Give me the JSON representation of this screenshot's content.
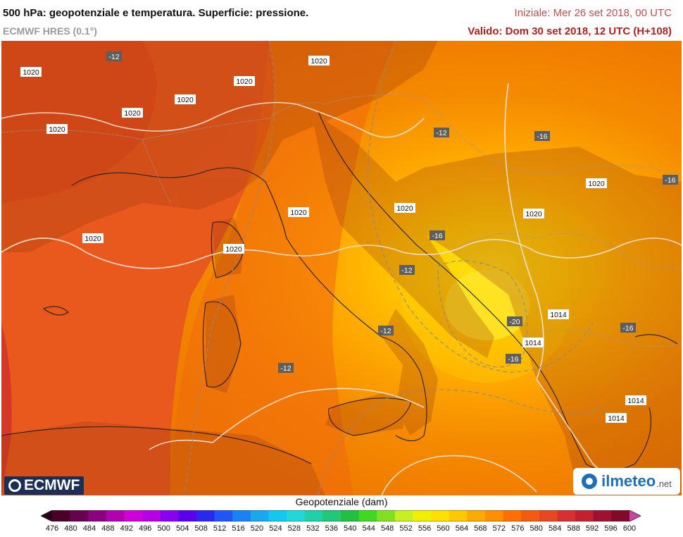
{
  "header": {
    "title": "500 hPa: geopotenziale e temperatura. Superficie: pressione.",
    "model": "ECMWF HRES (0.1°)",
    "init": "Iniziale: Mer 26 set 2018, 00 UTC",
    "valid": "Valido: Dom 30 set 2018, 12 UTC (H+108)"
  },
  "map": {
    "pressure_labels": [
      "1020",
      "1020",
      "1020",
      "1020",
      "1020",
      "1020",
      "1020",
      "1020",
      "1020",
      "1020",
      "1020",
      "1020",
      "1014",
      "1014",
      "1014",
      "1014"
    ],
    "temperature_labels": [
      "-12",
      "-12",
      "-16",
      "-16",
      "-16",
      "-12",
      "-20",
      "-16",
      "-12",
      "-12",
      "-16"
    ]
  },
  "scale": {
    "title": "Geopotenziale (dam)",
    "ticks": [
      "476",
      "480",
      "484",
      "488",
      "492",
      "496",
      "500",
      "504",
      "508",
      "512",
      "516",
      "520",
      "524",
      "528",
      "532",
      "536",
      "540",
      "544",
      "548",
      "552",
      "556",
      "560",
      "564",
      "568",
      "572",
      "576",
      "580",
      "584",
      "588",
      "592",
      "596",
      "600"
    ],
    "colors": [
      "#4b0028",
      "#6a0050",
      "#8a0080",
      "#b000b0",
      "#d000d8",
      "#b800e8",
      "#8a00f0",
      "#5a00f0",
      "#2828f0",
      "#1f56f5",
      "#1a82f5",
      "#18a8f0",
      "#10c8f0",
      "#20d8d8",
      "#20d0a8",
      "#20c878",
      "#20c040",
      "#40d820",
      "#80e020",
      "#c8f020",
      "#f0f000",
      "#ffe000",
      "#ffc800",
      "#ffaa00",
      "#ff9000",
      "#ff7000",
      "#f45a10",
      "#e84820",
      "#d83030",
      "#c02030",
      "#a01030",
      "#800a28"
    ]
  },
  "logos": {
    "ecmwf": "ECMWF",
    "ilmeteo": "ilmeteo",
    "ilmeteo_net": ".net"
  }
}
